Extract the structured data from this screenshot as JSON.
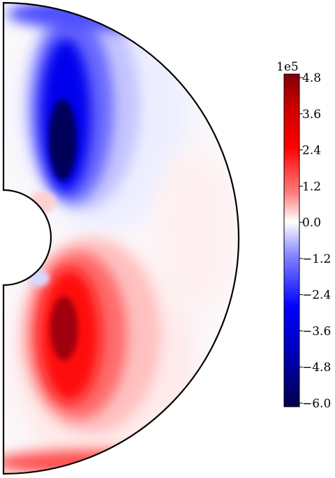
{
  "chart_data": {
    "type": "heatmap",
    "title": "",
    "xlabel": "",
    "ylabel": "",
    "geometry": "meridional half-annulus",
    "colormap": "seismic",
    "colorbar": {
      "scale_label": "1e5",
      "range": [
        -6.0,
        4.8
      ],
      "ticks": [
        {
          "value": 4.8,
          "label": "4.8"
        },
        {
          "value": 3.6,
          "label": "3.6"
        },
        {
          "value": 2.4,
          "label": "2.4"
        },
        {
          "value": 1.2,
          "label": "1.2"
        },
        {
          "value": 0.0,
          "label": "0.0"
        },
        {
          "value": -1.2,
          "label": "−1.2"
        },
        {
          "value": -2.4,
          "label": "−2.4"
        },
        {
          "value": -3.6,
          "label": "−3.6"
        },
        {
          "value": -4.8,
          "label": "−4.8"
        },
        {
          "value": -6.0,
          "label": "−6.0"
        }
      ],
      "colors": {
        "min": "#00004c",
        "low": "#0000ff",
        "zero": "#ffffff",
        "high": "#ff0000",
        "max": "#80000d"
      }
    },
    "regions": [
      {
        "name": "northern lobe",
        "sign": "negative",
        "peak_value": -6.0,
        "color": "#00004c"
      },
      {
        "name": "southern lobe",
        "sign": "positive",
        "peak_value": 4.8,
        "color": "#80000d"
      }
    ]
  }
}
